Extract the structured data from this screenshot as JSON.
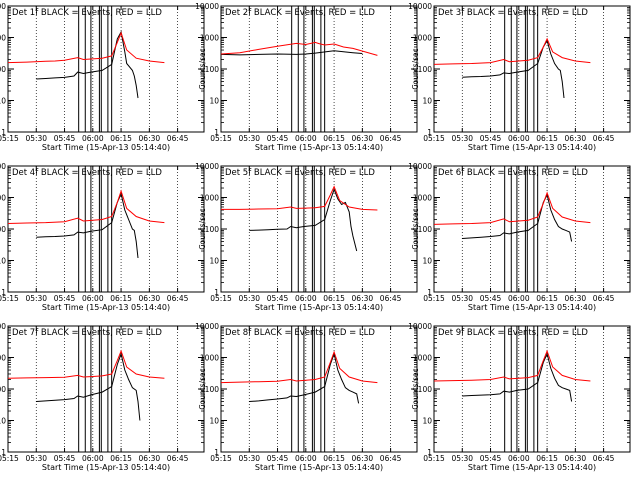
{
  "figure": {
    "x_ticks": [
      "05:15",
      "05:30",
      "05:45",
      "06:00",
      "06:15",
      "06:30",
      "06:45"
    ],
    "y_ticks": [
      "1",
      "10",
      "100",
      "1000",
      "10000"
    ],
    "xlabel": "Start Time (15-Apr-13 05:14:40)",
    "ylabel": "Counts/sec"
  },
  "colors": {
    "events": "#000000",
    "lld": "#ff0000"
  },
  "chart_data": [
    {
      "type": "line",
      "title": "Det 1f BLACK = Events, RED = LLD",
      "x_unit": "minutes after 05:15",
      "y_scale": "log",
      "ylim": [
        1,
        10000
      ],
      "xlim": [
        0,
        104
      ],
      "markers": [
        37.5,
        41,
        44,
        48.5,
        49.5,
        53,
        55
      ],
      "series": [
        {
          "name": "Events",
          "x": [
            15,
            20,
            25,
            30,
            35,
            37,
            40,
            44,
            50,
            55,
            58,
            60,
            62,
            63,
            66,
            67,
            68,
            69
          ],
          "y": [
            48,
            50,
            52,
            54,
            60,
            80,
            72,
            80,
            90,
            140,
            900,
            1500,
            350,
            150,
            90,
            60,
            30,
            12
          ]
        },
        {
          "name": "LLD",
          "x": [
            0,
            10,
            20,
            25,
            30,
            37,
            40,
            45,
            50,
            55,
            58,
            60,
            63,
            68,
            75,
            83
          ],
          "y": [
            160,
            165,
            175,
            180,
            190,
            230,
            200,
            210,
            220,
            260,
            700,
            1400,
            400,
            220,
            180,
            160
          ]
        }
      ]
    },
    {
      "type": "line",
      "title": "Det 2f BLACK = Events, RED = LLD",
      "x_unit": "minutes after 05:15",
      "y_scale": "log",
      "ylim": [
        1,
        10000
      ],
      "xlim": [
        0,
        104
      ],
      "markers": [
        37.5,
        41,
        44,
        48.5,
        49.5,
        53,
        55
      ],
      "series": [
        {
          "name": "Events",
          "x": [
            0,
            10,
            20,
            30,
            40,
            45,
            50,
            60,
            70,
            75
          ],
          "y": [
            290,
            280,
            290,
            300,
            290,
            300,
            320,
            380,
            330,
            310
          ]
        },
        {
          "name": "LLD",
          "x": [
            0,
            10,
            20,
            30,
            40,
            45,
            50,
            52,
            55,
            60,
            65,
            70,
            83
          ],
          "y": [
            300,
            330,
            420,
            530,
            650,
            600,
            700,
            640,
            580,
            620,
            500,
            450,
            270
          ]
        }
      ]
    },
    {
      "type": "line",
      "title": "Det 3f BLACK = Events, RED = LLD",
      "x_unit": "minutes after 05:15",
      "y_scale": "log",
      "ylim": [
        1,
        10000
      ],
      "xlim": [
        0,
        104
      ],
      "markers": [
        37.5,
        41,
        44,
        48.5,
        49.5,
        53,
        55
      ],
      "series": [
        {
          "name": "Events",
          "x": [
            15,
            20,
            25,
            30,
            35,
            37,
            40,
            44,
            50,
            55,
            58,
            60,
            62,
            64,
            66,
            67,
            68,
            69
          ],
          "y": [
            55,
            57,
            58,
            60,
            65,
            75,
            72,
            80,
            90,
            150,
            500,
            800,
            300,
            150,
            100,
            90,
            40,
            12
          ]
        },
        {
          "name": "LLD",
          "x": [
            0,
            10,
            20,
            30,
            37,
            40,
            45,
            50,
            55,
            58,
            60,
            63,
            68,
            75,
            83
          ],
          "y": [
            140,
            145,
            150,
            160,
            200,
            170,
            180,
            190,
            230,
            500,
            900,
            350,
            230,
            180,
            160
          ]
        }
      ]
    },
    {
      "type": "line",
      "title": "Det 4f BLACK = Events, RED = LLD",
      "x_unit": "minutes after 05:15",
      "y_scale": "log",
      "ylim": [
        1,
        10000
      ],
      "xlim": [
        0,
        104
      ],
      "markers": [
        37.5,
        41,
        44,
        48.5,
        49.5,
        53,
        55
      ],
      "series": [
        {
          "name": "Events",
          "x": [
            15,
            20,
            25,
            30,
            35,
            37,
            40,
            44,
            50,
            55,
            58,
            60,
            62,
            64,
            66,
            67,
            68,
            69
          ],
          "y": [
            55,
            57,
            58,
            60,
            65,
            80,
            75,
            85,
            95,
            160,
            700,
            1300,
            400,
            200,
            100,
            90,
            40,
            12
          ]
        },
        {
          "name": "LLD",
          "x": [
            0,
            10,
            20,
            30,
            37,
            40,
            45,
            50,
            55,
            58,
            60,
            63,
            68,
            75,
            83
          ],
          "y": [
            150,
            155,
            160,
            170,
            220,
            180,
            190,
            200,
            250,
            700,
            1600,
            450,
            250,
            180,
            160
          ]
        }
      ]
    },
    {
      "type": "line",
      "title": "Det 5f BLACK = Events, RED = LLD",
      "x_unit": "minutes after 05:15",
      "y_scale": "log",
      "ylim": [
        1,
        10000
      ],
      "xlim": [
        0,
        104
      ],
      "markers": [
        37.5,
        41,
        44,
        48.5,
        49.5,
        53,
        55
      ],
      "series": [
        {
          "name": "Events",
          "x": [
            15,
            20,
            25,
            30,
            35,
            37,
            40,
            44,
            50,
            55,
            58,
            60,
            62,
            64,
            66,
            68,
            69,
            70,
            72
          ],
          "y": [
            90,
            92,
            95,
            98,
            100,
            120,
            110,
            120,
            130,
            200,
            800,
            1800,
            900,
            600,
            700,
            350,
            120,
            60,
            20
          ]
        },
        {
          "name": "LLD",
          "x": [
            0,
            10,
            20,
            30,
            37,
            40,
            45,
            50,
            55,
            58,
            60,
            63,
            68,
            75,
            83
          ],
          "y": [
            420,
            420,
            430,
            440,
            500,
            450,
            460,
            470,
            520,
            1200,
            2200,
            800,
            500,
            420,
            400
          ]
        }
      ]
    },
    {
      "type": "line",
      "title": "Det 6f BLACK = Events, RED = LLD",
      "x_unit": "minutes after 05:15",
      "y_scale": "log",
      "ylim": [
        1,
        10000
      ],
      "xlim": [
        0,
        104
      ],
      "markers": [
        37.5,
        41,
        44,
        48.5,
        49.5,
        53,
        55
      ],
      "series": [
        {
          "name": "Events",
          "x": [
            15,
            20,
            25,
            30,
            35,
            37,
            40,
            44,
            50,
            55,
            58,
            60,
            62,
            64,
            66,
            68,
            70,
            72,
            73
          ],
          "y": [
            50,
            52,
            55,
            58,
            62,
            75,
            70,
            80,
            90,
            150,
            700,
            1200,
            400,
            200,
            120,
            100,
            90,
            80,
            40
          ]
        },
        {
          "name": "LLD",
          "x": [
            0,
            10,
            20,
            30,
            37,
            40,
            45,
            50,
            55,
            58,
            60,
            63,
            68,
            75,
            83
          ],
          "y": [
            140,
            145,
            150,
            160,
            210,
            170,
            180,
            190,
            240,
            650,
            1400,
            450,
            240,
            180,
            160
          ]
        }
      ]
    },
    {
      "type": "line",
      "title": "Det 7f BLACK = Events, RED = LLD",
      "x_unit": "minutes after 05:15",
      "y_scale": "log",
      "ylim": [
        1,
        10000
      ],
      "xlim": [
        0,
        104
      ],
      "markers": [
        37.5,
        41,
        44,
        48.5,
        49.5,
        53,
        55
      ],
      "series": [
        {
          "name": "Events",
          "x": [
            15,
            20,
            25,
            30,
            35,
            37,
            40,
            44,
            50,
            55,
            58,
            60,
            62,
            64,
            66,
            68,
            69,
            70
          ],
          "y": [
            40,
            42,
            44,
            46,
            50,
            60,
            55,
            65,
            80,
            120,
            600,
            1300,
            400,
            200,
            110,
            90,
            40,
            10
          ]
        },
        {
          "name": "LLD",
          "x": [
            0,
            10,
            20,
            30,
            37,
            40,
            45,
            50,
            55,
            58,
            60,
            63,
            68,
            75,
            83
          ],
          "y": [
            220,
            225,
            230,
            235,
            270,
            240,
            250,
            260,
            300,
            800,
            1600,
            500,
            300,
            240,
            220
          ]
        }
      ]
    },
    {
      "type": "line",
      "title": "Det 8f BLACK = Events, RED = LLD",
      "x_unit": "minutes after 05:15",
      "y_scale": "log",
      "ylim": [
        1,
        10000
      ],
      "xlim": [
        0,
        104
      ],
      "markers": [
        37.5,
        41,
        44,
        48.5,
        49.5,
        53,
        55
      ],
      "series": [
        {
          "name": "Events",
          "x": [
            15,
            20,
            25,
            30,
            35,
            37,
            40,
            44,
            50,
            55,
            58,
            60,
            62,
            64,
            66,
            68,
            70,
            72,
            73
          ],
          "y": [
            40,
            42,
            45,
            48,
            52,
            60,
            58,
            65,
            80,
            120,
            600,
            1300,
            400,
            200,
            110,
            90,
            80,
            70,
            35
          ]
        },
        {
          "name": "LLD",
          "x": [
            0,
            10,
            20,
            30,
            37,
            40,
            45,
            50,
            55,
            58,
            60,
            63,
            68,
            75,
            83
          ],
          "y": [
            160,
            165,
            170,
            175,
            200,
            180,
            190,
            200,
            240,
            700,
            1500,
            450,
            240,
            180,
            160
          ]
        }
      ]
    },
    {
      "type": "line",
      "title": "Det 9f BLACK = Events, RED = LLD",
      "x_unit": "minutes after 05:15",
      "y_scale": "log",
      "ylim": [
        1,
        10000
      ],
      "xlim": [
        0,
        104
      ],
      "markers": [
        37.5,
        41,
        44,
        48.5,
        49.5,
        53,
        55
      ],
      "series": [
        {
          "name": "Events",
          "x": [
            15,
            20,
            25,
            30,
            35,
            37,
            40,
            44,
            50,
            55,
            58,
            60,
            62,
            64,
            66,
            68,
            70,
            72,
            73
          ],
          "y": [
            60,
            62,
            64,
            66,
            70,
            85,
            80,
            90,
            100,
            160,
            700,
            1300,
            450,
            220,
            130,
            110,
            100,
            90,
            40
          ]
        },
        {
          "name": "LLD",
          "x": [
            0,
            10,
            20,
            30,
            37,
            40,
            45,
            50,
            55,
            58,
            60,
            63,
            68,
            75,
            83
          ],
          "y": [
            180,
            185,
            190,
            200,
            240,
            210,
            220,
            230,
            270,
            800,
            1600,
            500,
            270,
            200,
            180
          ]
        }
      ]
    }
  ]
}
